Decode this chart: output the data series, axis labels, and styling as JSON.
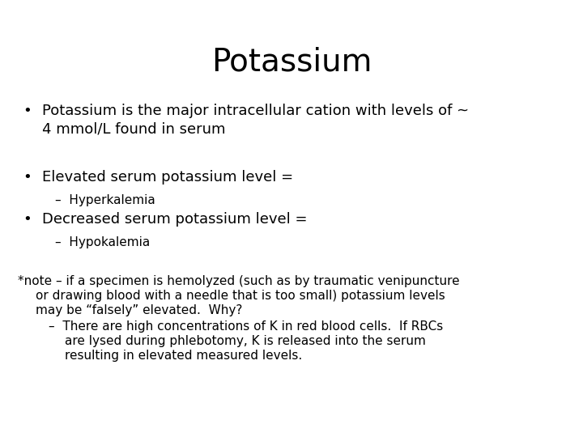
{
  "title": "Potassium",
  "background_color": "#ffffff",
  "text_color": "#000000",
  "title_fontsize": 28,
  "body_fontsize": 13,
  "sub_fontsize": 11,
  "note_fontsize": 11,
  "bullet1_line1": "Potassium is the major intracellular cation with levels of ~",
  "bullet1_line2": "4 mmol/L found in serum",
  "bullet2": "Elevated serum potassium level =",
  "sub2": "–  Hyperkalemia",
  "bullet3": "Decreased serum potassium level =",
  "sub3": "–  Hypokalemia",
  "note_line1": "*note – if a specimen is hemolyzed (such as by traumatic venipuncture",
  "note_line2": "or drawing blood with a needle that is too small) potassium levels",
  "note_line3": "may be “falsely” elevated.  Why?",
  "note_sub1": "–  There are high concentrations of K in red blood cells.  If RBCs",
  "note_sub2": "are lysed during phlebotomy, K is released into the serum",
  "note_sub3": "resulting in elevated measured levels."
}
